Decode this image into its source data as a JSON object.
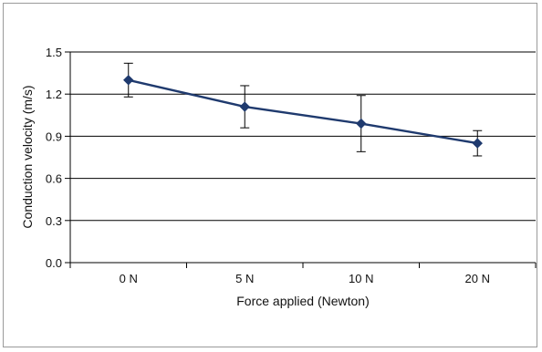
{
  "chart_data": {
    "type": "line",
    "title": "",
    "xlabel": "Force applied (Newton)",
    "ylabel": "Conduction velocity (m/s)",
    "categories": [
      "0 N",
      "5 N",
      "10 N",
      "20 N"
    ],
    "series": [
      {
        "name": "",
        "values": [
          1.3,
          1.11,
          0.99,
          0.85
        ],
        "error_upper": [
          1.42,
          1.26,
          1.19,
          0.94
        ],
        "error_lower": [
          1.18,
          0.96,
          0.79,
          0.76
        ],
        "color": "#1f3a6e",
        "marker": "diamond"
      }
    ],
    "ylim": [
      0,
      1.5
    ],
    "yticks": [
      0.0,
      0.3,
      0.6,
      0.9,
      1.2,
      1.5
    ],
    "ytick_labels": [
      "0.0",
      "0.3",
      "0.6",
      "0.9",
      "1.2",
      "1.5"
    ],
    "grid": true,
    "legend": "none"
  }
}
